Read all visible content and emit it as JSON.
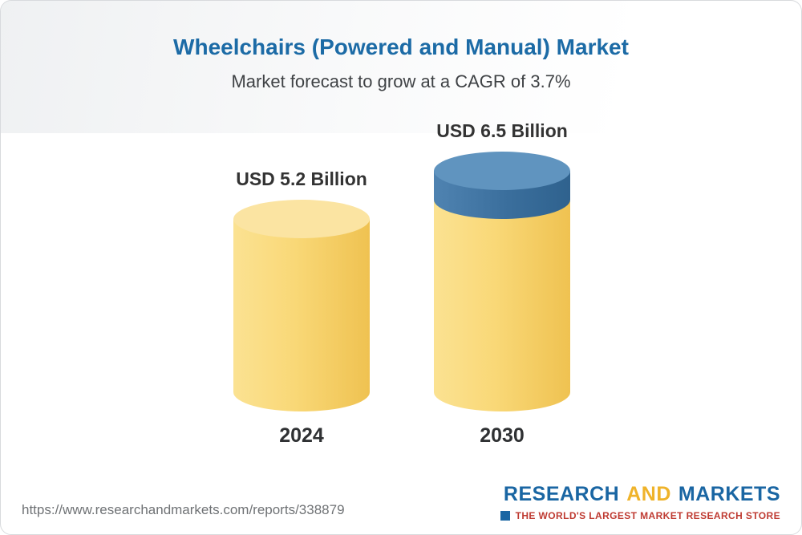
{
  "header": {
    "title": "Wheelchairs (Powered and Manual) Market",
    "subtitle": "Market forecast to grow at a CAGR of 3.7%"
  },
  "chart_data": {
    "type": "bar",
    "categories": [
      "2024",
      "2030"
    ],
    "values": [
      5.2,
      6.5
    ],
    "value_labels": [
      "USD 5.2 Billion",
      "USD 6.5 Billion"
    ],
    "unit": "USD Billion",
    "ylim": [
      0,
      6.5
    ],
    "cagr_percent": 3.7,
    "title": "Wheelchairs (Powered and Manual) Market",
    "subtitle": "Market forecast to grow at a CAGR of 3.7%",
    "colors": {
      "base_segment": "#F6CE5B",
      "growth_segment": "#3D74A6",
      "title_blue": "#1c6ba6"
    }
  },
  "footer": {
    "url": "https://www.researchandmarkets.com/reports/338879",
    "logo": {
      "research": "RESEARCH",
      "and": "AND",
      "markets": "MARKETS",
      "tagline": "THE WORLD'S LARGEST MARKET RESEARCH STORE"
    }
  }
}
